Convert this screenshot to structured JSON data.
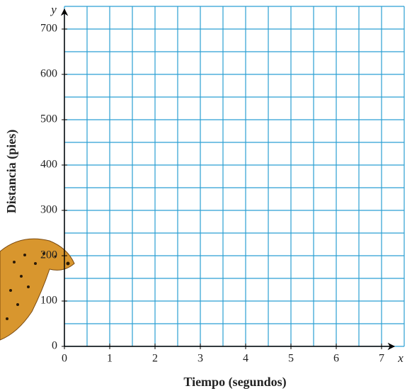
{
  "chart_data": {
    "type": "line",
    "xlabel": "Tiempo (segundos)",
    "ylabel": "Distancia (pies)",
    "x_axis_letter": "x",
    "y_axis_letter": "y",
    "xlim": [
      0,
      7.5
    ],
    "ylim": [
      0,
      750
    ],
    "xticks": [
      0,
      1,
      2,
      3,
      4,
      5,
      6,
      7
    ],
    "yticks": [
      0,
      100,
      200,
      300,
      400,
      500,
      600,
      700
    ],
    "xgrid": [
      0,
      0.5,
      1,
      1.5,
      2,
      2.5,
      3,
      3.5,
      4,
      4.5,
      5,
      5.5,
      6,
      6.5,
      7,
      7.5
    ],
    "ygrid": [
      0,
      50,
      100,
      150,
      200,
      250,
      300,
      350,
      400,
      450,
      500,
      550,
      600,
      650,
      700,
      750
    ],
    "grid_color": "#2b9fd3",
    "series": []
  }
}
